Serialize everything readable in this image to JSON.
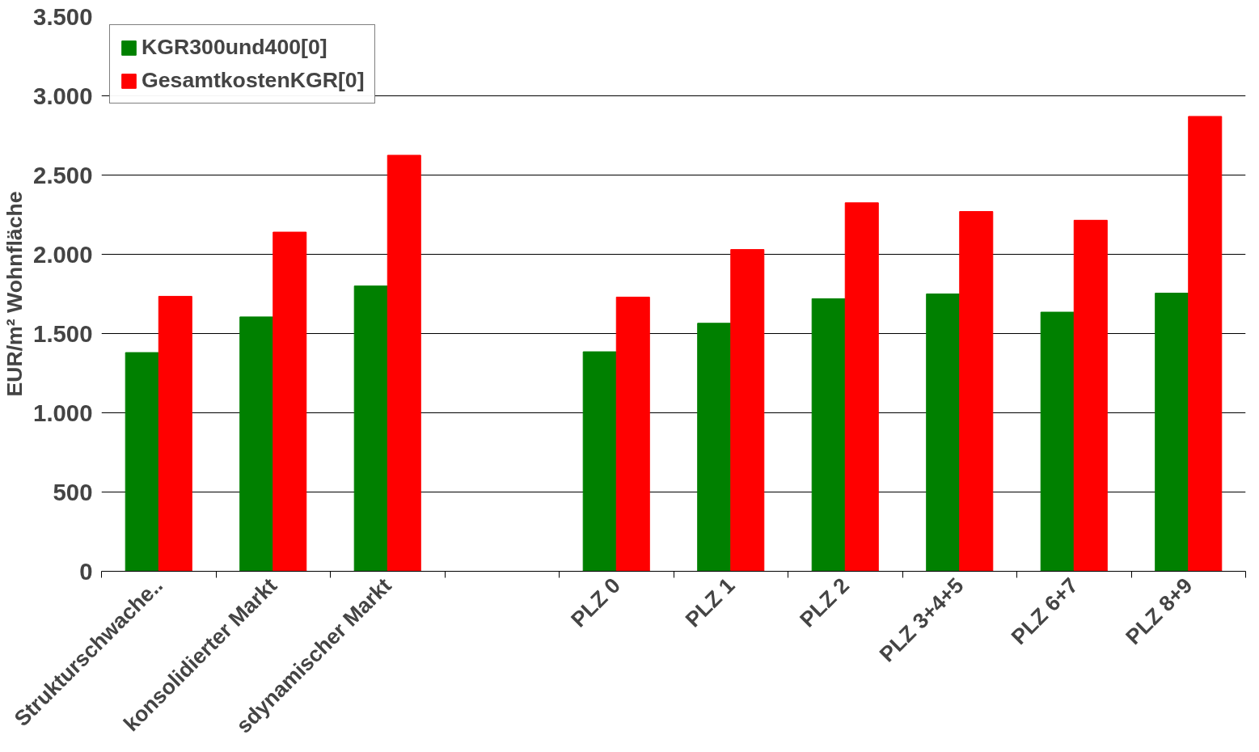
{
  "chart_data": {
    "type": "bar",
    "ylabel": "EUR/m² Wohnfläche",
    "categories": [
      "Strukturschwache..",
      "konsolidierter Markt",
      "sdynamischer Markt",
      null,
      "PLZ 0",
      "PLZ 1",
      "PLZ 2",
      "PLZ 3+4+5",
      "PLZ 6+7",
      "PLZ 8+9"
    ],
    "series": [
      {
        "name": "KGR300und400[0]",
        "color": "#008000",
        "values": [
          1380,
          1605,
          1800,
          null,
          1385,
          1565,
          1720,
          1750,
          1635,
          1755
        ]
      },
      {
        "name": "GesamtkostenKGR[0]",
        "color": "#ff0000",
        "values": [
          1735,
          2140,
          2625,
          null,
          1730,
          2030,
          2325,
          2270,
          2215,
          2870
        ]
      }
    ],
    "ylim": [
      0,
      3500
    ],
    "yticks": [
      {
        "value": 0,
        "label": "0"
      },
      {
        "value": 500,
        "label": "500"
      },
      {
        "value": 1000,
        "label": "1.000"
      },
      {
        "value": 1500,
        "label": "1.500"
      },
      {
        "value": 2000,
        "label": "2.000"
      },
      {
        "value": 2500,
        "label": "2.500"
      },
      {
        "value": 3000,
        "label": "3.000"
      },
      {
        "value": 3500,
        "label": "3.500"
      }
    ],
    "grid": "y",
    "legend": "top left"
  }
}
